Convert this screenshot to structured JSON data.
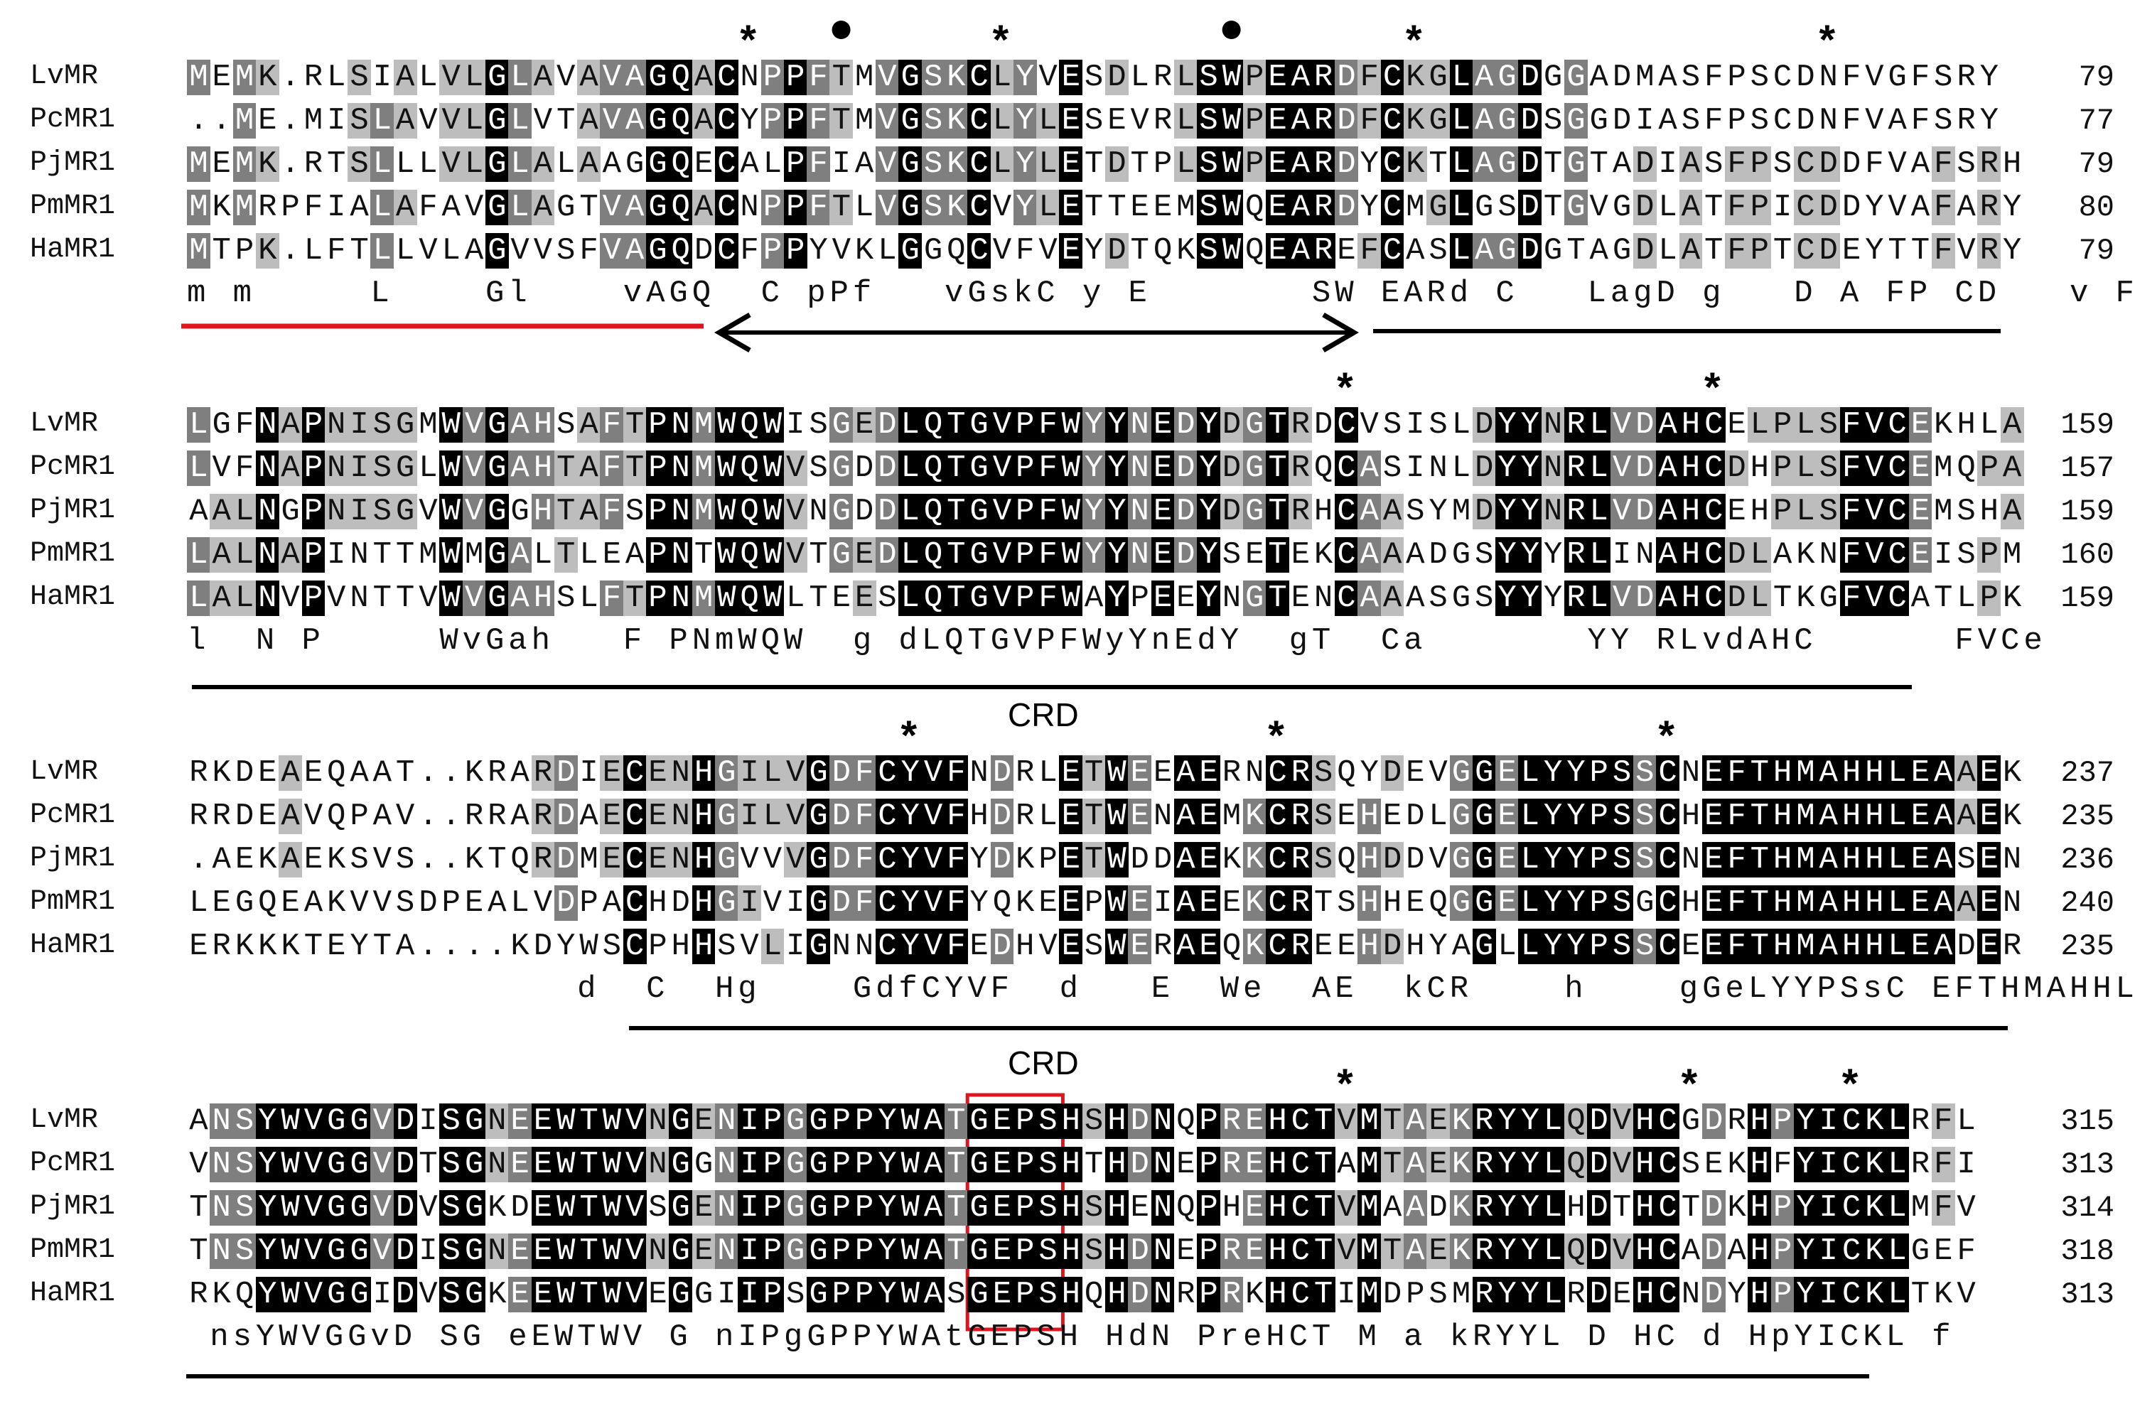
{
  "blocks": [
    {
      "species": [
        "LvMR",
        "PcMR1",
        "PjMR1",
        "PmMR1",
        "HaMR1"
      ],
      "sequences": [
        "MEMK.RLSIALVLGLAVAVAGQACNPPFTMVGSKCLYVESDLRLSWPEARDFCKGLAGDGGADMASFPSCDNFVGFSRY",
        "..ME.MISLAVVLGLVTAVAGQACYPPFTMVGSKCLYLESEVRLSWPEARDFCKGLAGDSGGDIASFPSCDNFVAFSRY",
        "MEMK.RTSLLLVLGLALAAGGQECALPFIAVGSKCLYLETDTPLSWPEARDYCKTLAGDTGTADIASFPSCDDFVAFSRH",
        "MKMRPFIALAFAVGLAGTVAGQACNPPFTLVGSKCVYLETTEEMSWQEARDYCMGLGSDTGVGDLATFPICDDYVAFARY",
        "MTPK.LFTLLVLAGVVSFVAGQDCFPPYVKLGGQCVFVEYDTQKSWQEAREFCASLAGDGTAGDLATFPTCDEYTTFVRY"
      ],
      "ends": [
        "79",
        "77",
        "79",
        "80",
        "79"
      ],
      "consensus": "m m     L    Gl    vAGQ  C pPf   vGskC y E       SW EARd C   LagD g   D A FP CD   v F Ry",
      "stars": [
        24,
        35,
        53,
        71
      ],
      "dots": [
        28,
        45
      ],
      "label": ""
    },
    {
      "species": [
        "LvMR",
        "PcMR1",
        "PjMR1",
        "PmMR1",
        "HaMR1"
      ],
      "sequences": [
        "LGFNAPNISGMWVGAHSAFTPNMWQWISGEDLQTGVPFWYYNEDYDGTRDCVSISLDYYNRLVDAHCELPLSFVCEKHLA",
        "LVFNAPNISGLWVGAHTAFTPNMWQWVSGDDLQTGVPFWYYNEDYDGTRQCASINLDYYNRLVDAHCDHPLSFVCEMQPA",
        "AALNGPNISGVWVGGHTAFSPNMWQWVNGDDLQTGVPFWYYNEDYDGTRHCAASYMDYYNRLVDAHCEHPLSFVCEMSHA",
        "LALNAPINTTMWMGALTLEAPNTWQWVTGEDLQTGVPFWYYNEDYSETEKCAAADGSYYYRLINAHCDLAKNFVCEISPM",
        "LALNVPVNTTVWVGAHSLFTPNMWQWLTEESLQTGVPFWAYPEEYNGTENCAAASGSYYYRLVDAHCDLTKGFVCATLPK"
      ],
      "ends": [
        "159",
        "157",
        "159",
        "160",
        "159"
      ],
      "consensus": "l  N P     WvGah   F PNmWQW  g dLQTGVPFWyYnEdY  gT  Ca       YY RLvdAHC      FVCe",
      "stars": [
        50,
        66
      ],
      "dots": [],
      "label": ""
    },
    {
      "species": [
        "LvMR",
        "PcMR1",
        "PjMR1",
        "PmMR1",
        "HaMR1"
      ],
      "sequences": [
        "RKDEAEQAAT..KRARDIECENHGILVGDFCYVFNDRLETWEEAERNCRSQYDEVGGELYYPSSCNEFTHMAHHLEAAEK",
        "RRDEAVQPAV..RRARDAECENHGILVGDFCYVFHDRLETWENAEMKCRSEHEDLGGELYYPSSCHEFTHMAHHLEAAEK",
        ".AEKAEKSVS..KTQRDMECENHGVVVGDFCYVFYDKPETWDDAEKKCRSQHDDVGGELYYPSSCNEFTHMAHHLEASEN",
        "LEGQEAKVVSDPEALVDPACHDHGIVIGDFCYVFYQKEEPWEIAEEKCRTSHHEQGGELYYPSGCHEFTHMAHHLEAAEN",
        "ERKKKTEYTA....KDYWSCPHHSVLIGNNCYVFEDHVESWERAEQKCREEHDHYAGLLYYPSSCEEFTHMAHHLEADER"
      ],
      "ends": [
        "237",
        "235",
        "236",
        "240",
        "235"
      ],
      "consensus": "                 d  C  Hg    GdfCYVF  d   E  We  AE  kCR    h    gGeLYYPSsC EFTHMAHHLEA  E",
      "stars": [
        31,
        47,
        64
      ],
      "dots": [],
      "label": "CRD"
    },
    {
      "species": [
        "LvMR",
        "PcMR1",
        "PjMR1",
        "PmMR1",
        "HaMR1"
      ],
      "sequences": [
        "ANSYWVGGVDISGNEEWTWVNGENIPGGPPYWATGEPSHSHDNQPREHCTVMTAEKRYYLQDVHCGDRHPYICKLRFL",
        "VNSYWVGGVDTSGNEEWTWVNGGNIPGGPPYWATGEPSHTHDNEPREHCTAMTAEKRYYLQDVHCSEKHFYICKLRFI",
        "TNSYWVGGVDVSGKDEWTWVSGENIPGGPPYWATGEPSHSHENQPHEHCTVMAADKRYYLHDTHCTDKHPYICKLMFV",
        "TNSYWVGGVDISGNEEWTWVNGENIPGGPPYWATGEPSHSHDNEPREHCTVMTAEKRYYLQDVHCADAHPYICKLGEF",
        "RKQYWVGGIDVSGKEEWTWVEGGIIPSGPPYWASGEPSHQHDNRPRKHCTIMDPSMRYYLRDEHCNDYHPYICKLTKV"
      ],
      "ends": [
        "315",
        "313",
        "314",
        "318",
        "313"
      ],
      "consensus": " nsYWVGGvD SG eEWTWV G nIPgGPPYWAtGEPSH HdN PreHCT M a kRYYL D HC d HpYICKL f",
      "stars": [
        50,
        65,
        72
      ],
      "dots": [],
      "label": "CRD"
    }
  ],
  "colors": {
    "black_shade": "#000000",
    "dark_shade": "#7f7f7f",
    "light_shade": "#bdbdbd",
    "signal_line": "#e0141e",
    "domain_line": "#000000",
    "box": "#e0141e"
  }
}
